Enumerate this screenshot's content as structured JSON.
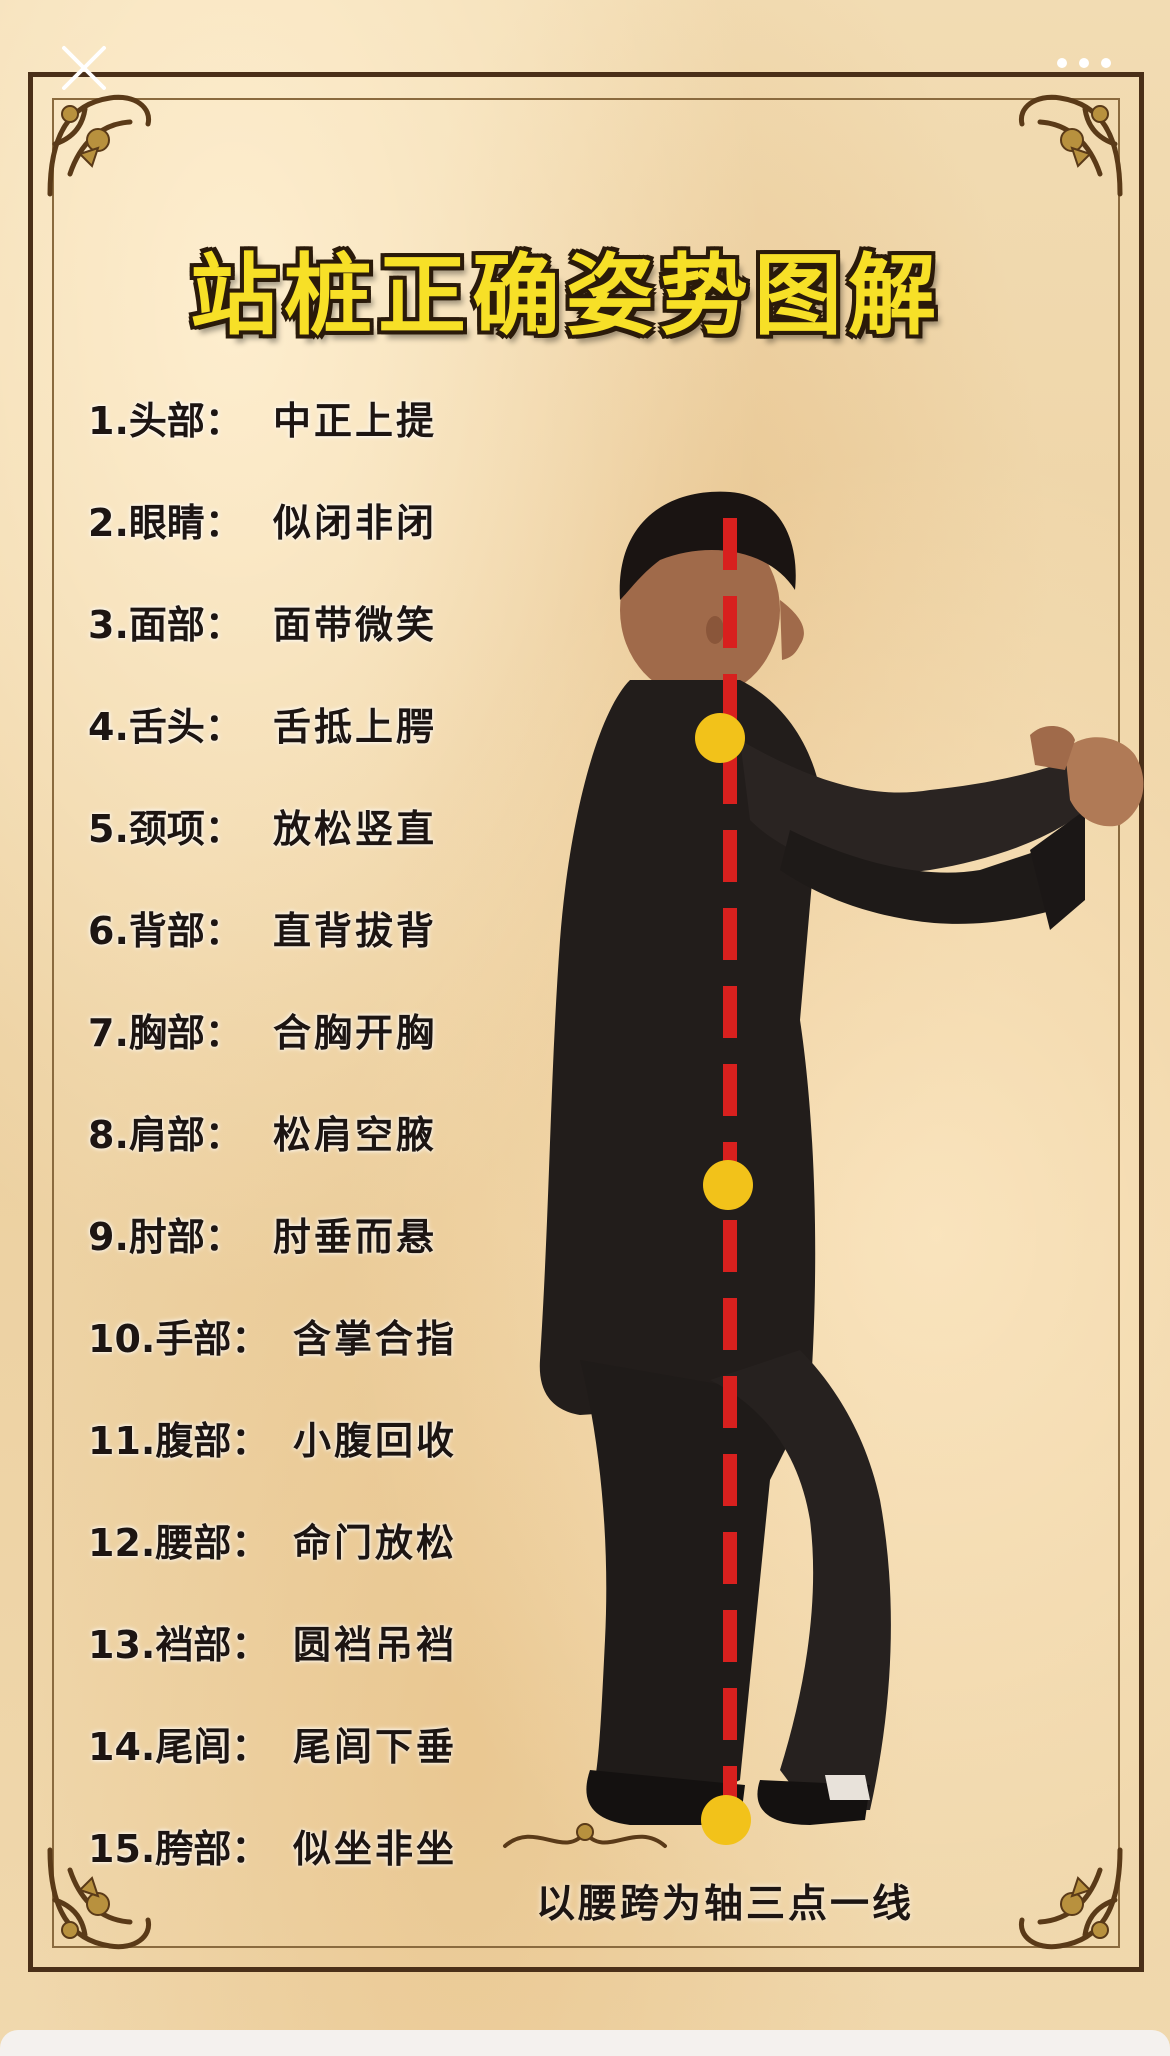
{
  "title": "站桩正确姿势图解",
  "topbar": {
    "close_icon": "close-icon",
    "more_icon": "more-options-icon"
  },
  "items": [
    {
      "num": "1.头部：",
      "value": "中正上提"
    },
    {
      "num": "2.眼睛：",
      "value": "似闭非闭"
    },
    {
      "num": "3.面部：",
      "value": "面带微笑"
    },
    {
      "num": "4.舌头：",
      "value": "舌抵上腭"
    },
    {
      "num": "5.颈项：",
      "value": "放松竖直"
    },
    {
      "num": "6.背部：",
      "value": "直背拔背"
    },
    {
      "num": "7.胸部：",
      "value": "合胸开胸"
    },
    {
      "num": "8.肩部：",
      "value": "松肩空腋"
    },
    {
      "num": "9.肘部：",
      "value": "肘垂而悬"
    },
    {
      "num": "10.手部：",
      "value": "含掌合指"
    },
    {
      "num": "11.腹部：",
      "value": "小腹回收"
    },
    {
      "num": "12.腰部：",
      "value": "命门放松"
    },
    {
      "num": "13.裆部：",
      "value": "圆裆吊裆"
    },
    {
      "num": "14.尾闾：",
      "value": "尾闾下垂"
    },
    {
      "num": "15.胯部：",
      "value": "似坐非坐"
    }
  ],
  "axis_caption": "以腰跨为轴三点一线",
  "colors": {
    "title_fill": "#f7e027",
    "title_outline": "#2a1a0a",
    "axis_line": "#d8201e",
    "alignment_dot": "#f2c21a",
    "frame": "#4a2f18"
  }
}
